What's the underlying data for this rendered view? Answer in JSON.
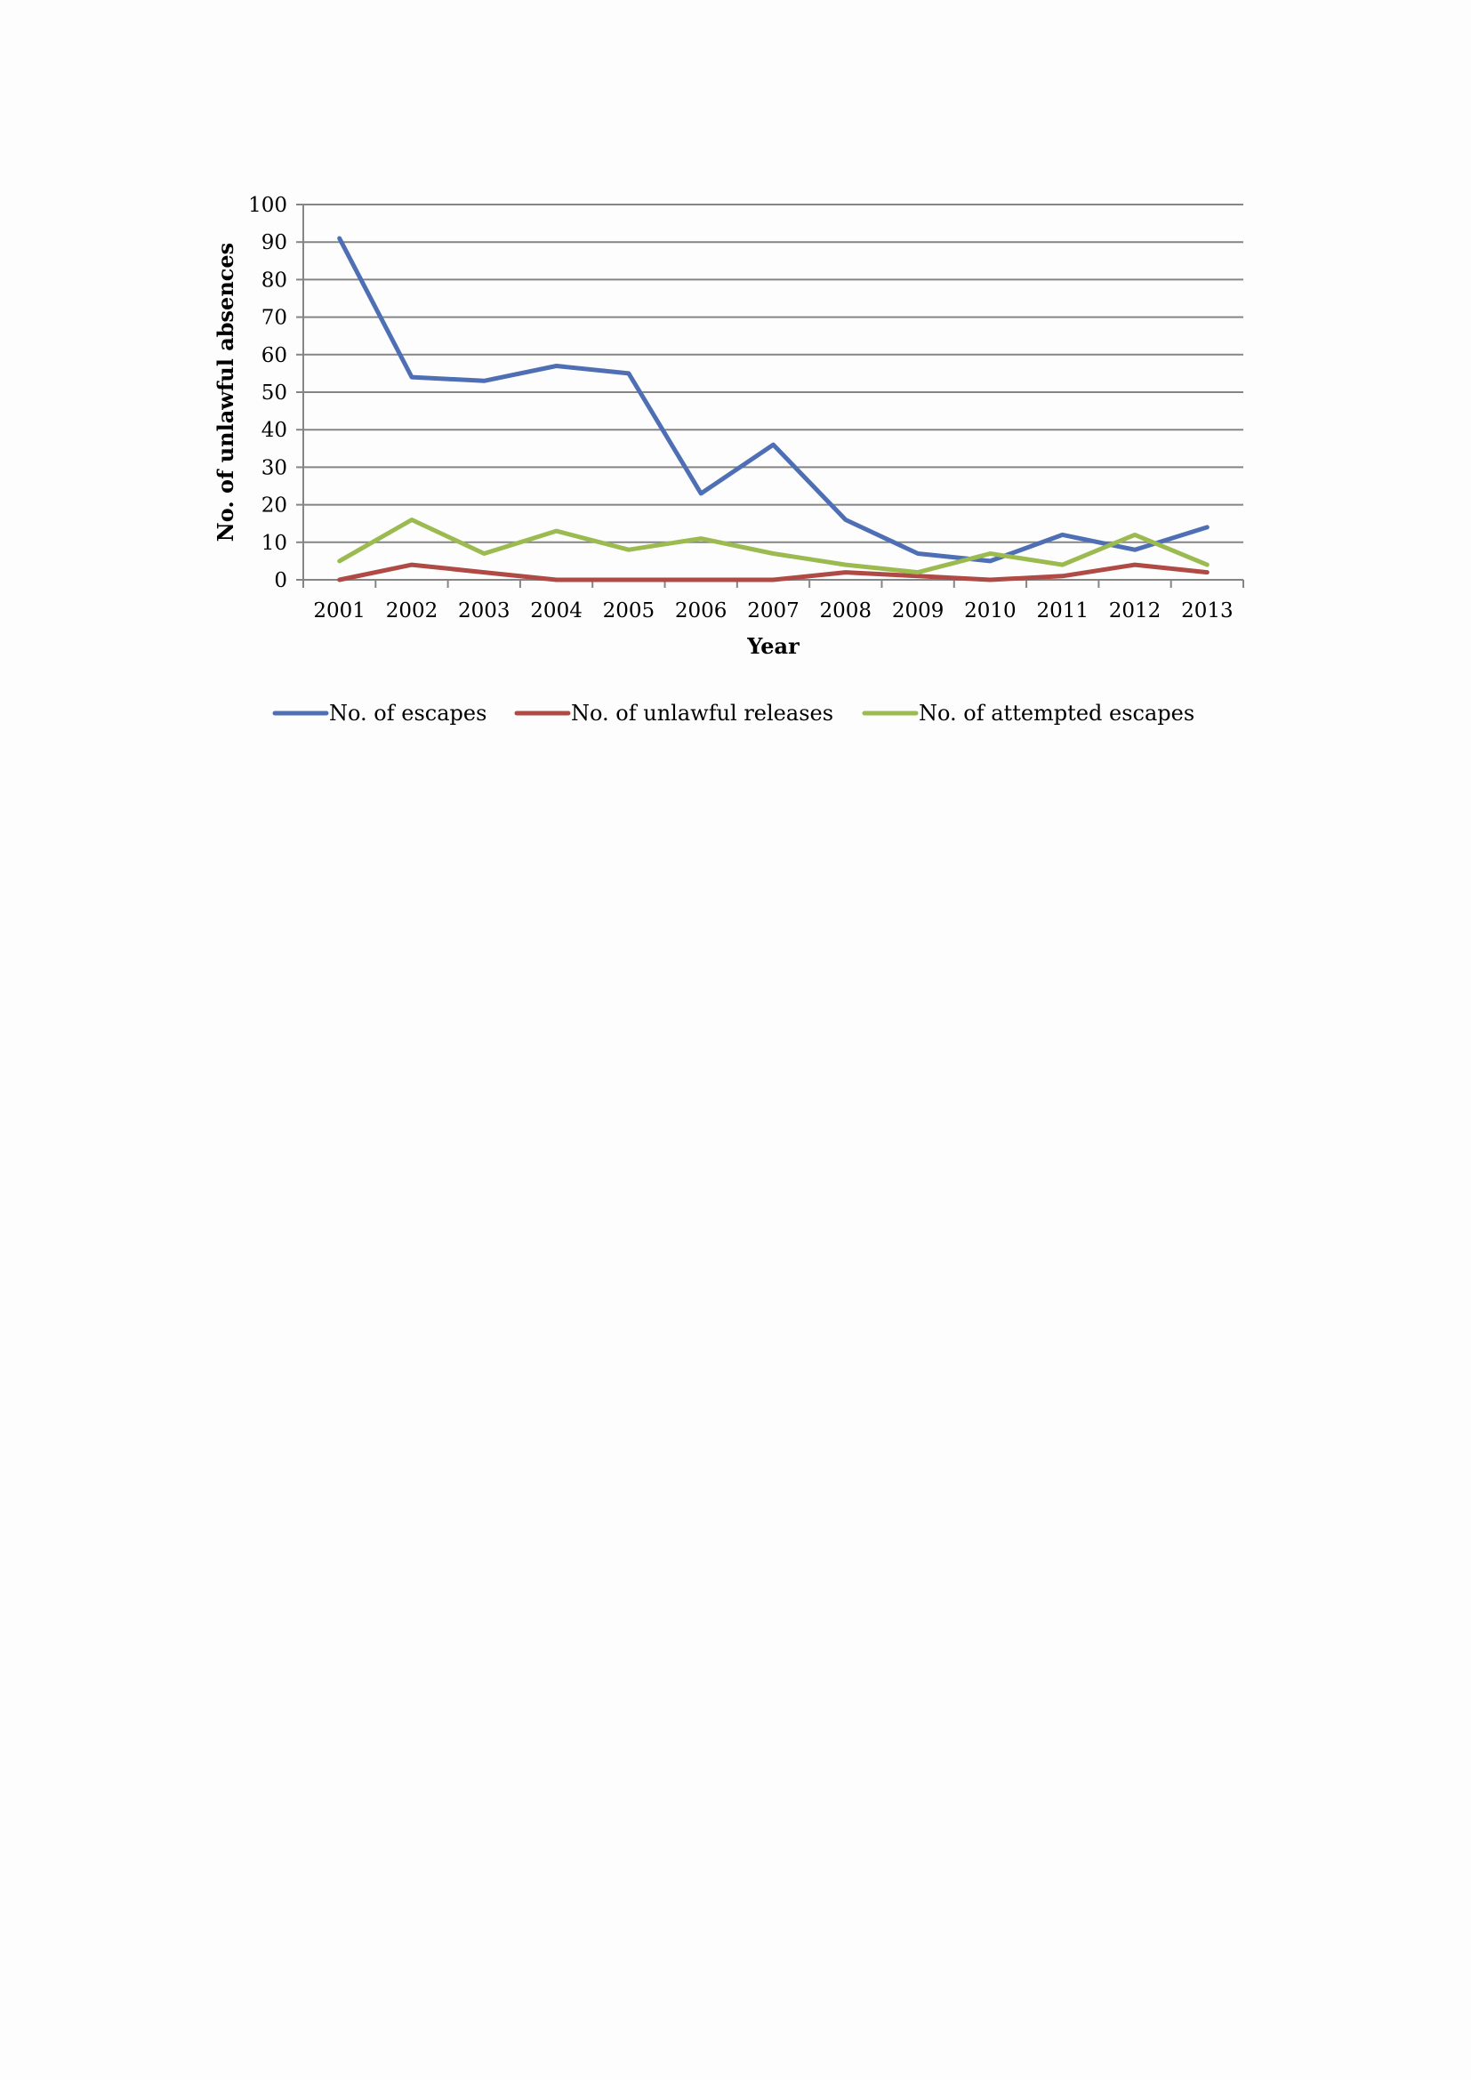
{
  "chart_data": {
    "type": "line",
    "title": "",
    "xlabel": "Year",
    "ylabel": "No. of unlawful absences",
    "ylim": [
      0,
      100
    ],
    "y_ticks": [
      "0",
      "10",
      "20",
      "30",
      "40",
      "50",
      "60",
      "70",
      "80",
      "90",
      "100"
    ],
    "x": [
      "2001",
      "2002",
      "2003",
      "2004",
      "2005",
      "2006",
      "2007",
      "2008",
      "2009",
      "2010",
      "2011",
      "2012",
      "2013"
    ],
    "grid": true,
    "legend_position": "bottom",
    "series": [
      {
        "name": "No. of escapes",
        "color": "#4f6fb5",
        "values": [
          91,
          54,
          53,
          57,
          55,
          23,
          36,
          16,
          7,
          5,
          12,
          8,
          14
        ]
      },
      {
        "name": "No. of unlawful releases",
        "color": "#b04a45",
        "values": [
          0,
          4,
          2,
          0,
          0,
          0,
          0,
          2,
          1,
          0,
          1,
          4,
          2
        ]
      },
      {
        "name": "No. of attempted escapes",
        "color": "#9bbb50",
        "values": [
          5,
          16,
          7,
          13,
          8,
          11,
          7,
          4,
          2,
          7,
          4,
          12,
          4
        ]
      }
    ]
  }
}
